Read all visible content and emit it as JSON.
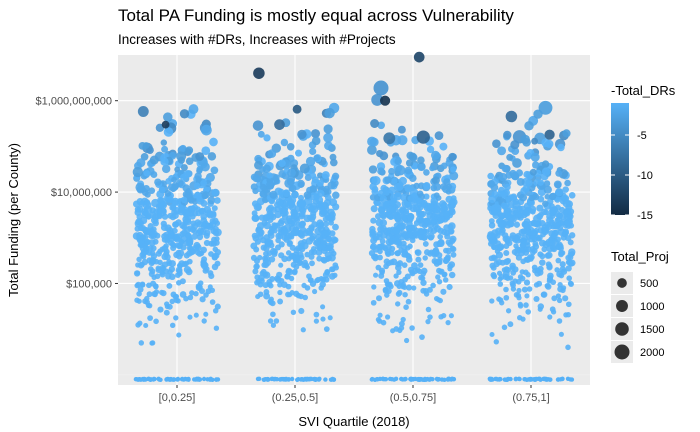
{
  "chart_data": {
    "type": "scatter",
    "title": "Total PA Funding is mostly equal across Vulnerability",
    "subtitle": "Increases with #DRs, Increases with #Projects",
    "xlabel": "SVI Quartile (2018)",
    "ylabel": "Total Funding (per County)",
    "categories": [
      "[0,0.25]",
      "(0.25,0.5]",
      "(0.5,0.75]",
      "(0.75,1]"
    ],
    "y_scale": "log10",
    "y_ticks": [
      100000,
      10000000,
      1000000000
    ],
    "y_tick_labels": [
      "$100,000",
      "$10,000,000",
      "$1,000,000,000"
    ],
    "ylim": [
      600,
      10000000000.0
    ],
    "grid": true,
    "jitter_note": "points horizontally jittered within each category",
    "color_legend": {
      "title": "-Total_DRs",
      "ticks": [
        -5,
        -10,
        -15
      ],
      "range": [
        -15,
        -1
      ],
      "low_color": "#132B43",
      "high_color": "#56B1F7"
    },
    "size_legend": {
      "title": "Total_Proj",
      "values": [
        500,
        1000,
        1500,
        2000
      ]
    },
    "highlight_points": [
      {
        "category": "(0.25,0.5]",
        "y": 4000000000,
        "total_proj": 900,
        "neg_total_drs": -13
      },
      {
        "category": "(0.25,0.5]",
        "y": 650000000,
        "total_proj": 350,
        "neg_total_drs": -10
      },
      {
        "category": "(0.5,0.75]",
        "y": 1900000000,
        "total_proj": 2000,
        "neg_total_drs": -4
      },
      {
        "category": "(0.5,0.75]",
        "y": 9000000000,
        "total_proj": 700,
        "neg_total_drs": -12
      },
      {
        "category": "(0.5,0.75]",
        "y": 1000000000,
        "total_proj": 600,
        "neg_total_drs": -14
      },
      {
        "category": "(0.5,0.75]",
        "y": 160000000,
        "total_proj": 1400,
        "neg_total_drs": -9
      },
      {
        "category": "(0.5,0.75]",
        "y": 150000000,
        "total_proj": 1000,
        "neg_total_drs": -7
      },
      {
        "category": "(0.75,1]",
        "y": 700000000,
        "total_proj": 1600,
        "neg_total_drs": -3
      },
      {
        "category": "(0.75,1]",
        "y": 450000000,
        "total_proj": 900,
        "neg_total_drs": -8
      },
      {
        "category": "(0.75,1]",
        "y": 180000000,
        "total_proj": 600,
        "neg_total_drs": -9
      },
      {
        "category": "(0.25,0.5]",
        "y": 300000000,
        "total_proj": 700,
        "neg_total_drs": -8
      },
      {
        "category": "[0,0.25]",
        "y": 60000000,
        "total_proj": 350,
        "neg_total_drs": -4
      },
      {
        "category": "[0,0.25]",
        "y": 300000000,
        "total_proj": 200,
        "neg_total_drs": -13
      }
    ],
    "bulk_points": {
      "count_per_category": 520,
      "median_y": 2000000,
      "floor_y": 800,
      "floor_points_per_category": 60
    }
  }
}
